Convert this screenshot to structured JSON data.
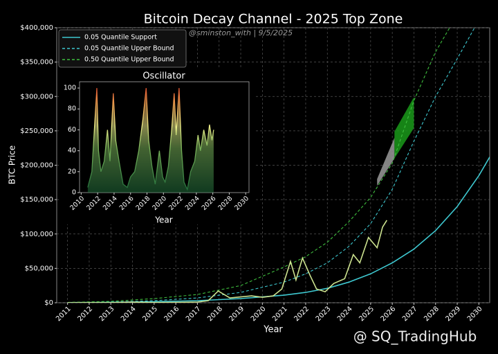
{
  "chart_data": [
    {
      "type": "line",
      "title": "Bitcoin Decay Channel - 2025 Top Zone",
      "subtitle": "@sminston_with  |  9/5/2025",
      "x_label": "Year",
      "y_label": "BTC Price",
      "xlim": [
        2010.5,
        2030.5
      ],
      "ylim": [
        0,
        400000
      ],
      "xticks": [
        2011,
        2012,
        2013,
        2014,
        2015,
        2016,
        2017,
        2018,
        2019,
        2020,
        2021,
        2022,
        2023,
        2024,
        2025,
        2026,
        2027,
        2028,
        2029,
        2030
      ],
      "yticks": [
        {
          "value": 0,
          "label": "$0"
        },
        {
          "value": 50000,
          "label": "$50,000"
        },
        {
          "value": 100000,
          "label": "$100,000"
        },
        {
          "value": 150000,
          "label": "$150,000"
        },
        {
          "value": 200000,
          "label": "$200,000"
        },
        {
          "value": 250000,
          "label": "$250,000"
        },
        {
          "value": 300000,
          "label": "$300,000"
        },
        {
          "value": 350000,
          "label": "$350,000"
        },
        {
          "value": 400000,
          "label": "$400,000"
        }
      ],
      "grid": true,
      "legend": "upper left",
      "series": [
        {
          "name": "0.05 Quantile Support",
          "color": "#3ec8d0",
          "style": "solid",
          "legend": true,
          "x": [
            2011,
            2013,
            2015,
            2017,
            2019,
            2021,
            2022,
            2023,
            2024,
            2025,
            2026,
            2027,
            2028,
            2029,
            2030,
            2030.5
          ],
          "values": [
            200,
            600,
            1500,
            3000,
            6000,
            11000,
            15000,
            21000,
            30000,
            42000,
            58000,
            78000,
            105000,
            140000,
            185000,
            212000
          ]
        },
        {
          "name": "0.05 Quantile Upper Bound",
          "color": "#3ec8d0",
          "style": "dashed",
          "legend": true,
          "x": [
            2011,
            2013,
            2015,
            2017,
            2019,
            2021,
            2022,
            2023,
            2024,
            2025,
            2026,
            2027,
            2028,
            2029,
            2029.8
          ],
          "values": [
            300,
            1000,
            3000,
            7000,
            15000,
            30000,
            42000,
            58000,
            82000,
            115000,
            165000,
            235000,
            300000,
            355000,
            400000
          ]
        },
        {
          "name": "0.50 Quantile Upper Bound",
          "color": "#3fbf3f",
          "style": "dashed",
          "legend": true,
          "x": [
            2011,
            2013,
            2015,
            2017,
            2019,
            2021,
            2022,
            2023,
            2024,
            2025,
            2026,
            2027,
            2028,
            2028.65
          ],
          "values": [
            500,
            2000,
            6000,
            12000,
            25000,
            52000,
            67000,
            88000,
            118000,
            153000,
            203000,
            294000,
            365000,
            400000
          ]
        },
        {
          "color": "#cde38f",
          "style": "solid",
          "legend": false,
          "x": [
            2011,
            2013,
            2013.9,
            2015,
            2016,
            2017,
            2017.5,
            2017.96,
            2018.5,
            2019.5,
            2020,
            2020.5,
            2020.9,
            2021.3,
            2021.55,
            2021.85,
            2022.2,
            2022.5,
            2022.9,
            2023.3,
            2023.8,
            2024.2,
            2024.5,
            2024.9,
            2025.3,
            2025.55,
            2025.75
          ],
          "values": [
            5,
            100,
            1000,
            300,
            500,
            1000,
            3000,
            17000,
            7000,
            10000,
            8000,
            10000,
            20000,
            60000,
            33000,
            65000,
            40000,
            20000,
            16000,
            28000,
            35000,
            70000,
            58000,
            95000,
            80000,
            110000,
            120000
          ]
        }
      ],
      "zones": [
        {
          "color": "#9a9a9a",
          "x": [
            2025.3,
            2026.1,
            2026.1,
            2025.3
          ],
          "y": [
            170000,
            210000,
            240000,
            180000
          ]
        },
        {
          "color": "#1a9a1a",
          "x": [
            2026.1,
            2027,
            2027,
            2026.1
          ],
          "y": [
            210000,
            254000,
            299000,
            249000
          ]
        }
      ]
    },
    {
      "type": "area",
      "title": "Oscillator",
      "x_label": "Year",
      "xlim": [
        2009.8,
        2030.4
      ],
      "ylim": [
        0,
        106
      ],
      "xticks": [
        2010,
        2012,
        2014,
        2016,
        2018,
        2020,
        2022,
        2024,
        2026,
        2028,
        2030
      ],
      "yticks": [
        0,
        20,
        40,
        60,
        80,
        100
      ],
      "x": [
        2010.8,
        2011.3,
        2011.6,
        2011.9,
        2012.1,
        2012.4,
        2012.8,
        2013.2,
        2013.5,
        2013.9,
        2014.2,
        2014.6,
        2015.1,
        2015.6,
        2016,
        2016.5,
        2017,
        2017.5,
        2017.9,
        2018.2,
        2018.6,
        2019,
        2019.5,
        2019.9,
        2020.2,
        2020.6,
        2021,
        2021.3,
        2021.55,
        2021.9,
        2022.2,
        2022.5,
        2022.9,
        2023.3,
        2023.8,
        2024.2,
        2024.5,
        2024.9,
        2025.3,
        2025.6,
        2025.9,
        2026.1
      ],
      "values": [
        5,
        20,
        60,
        100,
        40,
        20,
        30,
        60,
        30,
        95,
        50,
        30,
        8,
        5,
        15,
        20,
        40,
        70,
        100,
        50,
        25,
        8,
        40,
        15,
        10,
        25,
        60,
        95,
        55,
        100,
        40,
        10,
        3,
        20,
        30,
        55,
        40,
        60,
        45,
        65,
        50,
        60
      ]
    }
  ],
  "watermark": "@ SQ_TradingHub"
}
